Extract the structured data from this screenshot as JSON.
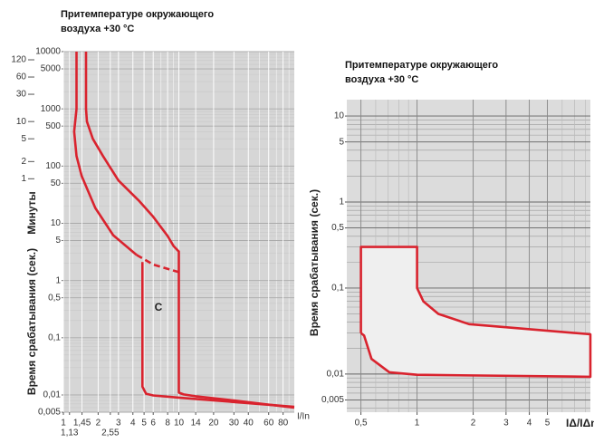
{
  "chart_data": [
    {
      "type": "line",
      "title": [
        "Притемпературе окружающего",
        "воздуха +30 °C"
      ],
      "y_label": "Время срабатывания (сек.)",
      "y2_label": "Минуты",
      "x_label": "I/In",
      "annotation": "C",
      "log_x": true,
      "log_y": true,
      "grid": true,
      "background": "#d6d6d6",
      "xlim": [
        1,
        100
      ],
      "ylim": [
        0.005,
        10000
      ],
      "y2lim": [
        8.33e-05,
        166.7
      ],
      "xticks": [
        1,
        {
          "value": 1.45,
          "label": "1,45"
        },
        2,
        3,
        4,
        5,
        6,
        8,
        10,
        14,
        20,
        30,
        40,
        60,
        80
      ],
      "xticks_lower": [
        {
          "value": 1.13,
          "label": "1,13"
        },
        {
          "value": 2.55,
          "label": "2,55"
        }
      ],
      "yticks": [
        10000,
        5000,
        1000,
        500,
        100,
        50,
        10,
        5,
        1,
        {
          "value": 0.5,
          "label": "0,5"
        },
        {
          "value": 0.1,
          "label": "0,1"
        },
        {
          "value": 0.01,
          "label": "0,01"
        },
        {
          "value": 0.005,
          "label": "0,005"
        }
      ],
      "y2ticks": [
        120,
        60,
        30,
        10,
        5,
        2,
        1
      ],
      "series": [
        {
          "color": "#d9232e",
          "x": [
            1.57,
            1.57,
            1.6,
            1.8,
            2.2,
            3,
            4.5,
            6,
            8,
            9,
            10,
            10,
            11,
            14,
            30,
            100
          ],
          "values": [
            10000,
            1000,
            600,
            300,
            150,
            56,
            25,
            13,
            6,
            4,
            3.2,
            0.011,
            0.0102,
            0.0095,
            0.008,
            0.006
          ]
        },
        {
          "color": "#d9232e",
          "x": [
            1.3,
            1.3,
            1.24,
            1.3,
            1.44,
            1.89,
            2.7,
            4.3
          ],
          "values": [
            10000,
            1000,
            400,
            150,
            67,
            18.6,
            6.2,
            2.8
          ]
        },
        {
          "color": "#d9232e",
          "dashed": true,
          "x": [
            4.3,
            6,
            8,
            10
          ],
          "values": [
            2.8,
            1.9,
            1.6,
            1.4
          ]
        },
        {
          "color": "#d9232e",
          "x": [
            4.84,
            4.84,
            5.2,
            6,
            10,
            100
          ],
          "values": [
            2.1,
            0.014,
            0.0105,
            0.0098,
            0.009,
            0.0062
          ]
        }
      ]
    },
    {
      "type": "line",
      "title": [
        "Притемпературе окружающего",
        "воздуха +30 °C"
      ],
      "y_label": "Время срабатывания (сек.)",
      "x_label": "IΔ/IΔn",
      "log_x": true,
      "log_y": true,
      "grid": true,
      "background": "#dcdcdc",
      "xlim": [
        0.42,
        8.5
      ],
      "ylim": [
        0.0036,
        15.5
      ],
      "xticks": [
        {
          "value": 0.5,
          "label": "0,5"
        },
        1,
        2,
        3,
        4,
        5
      ],
      "yticks": [
        10,
        5,
        1,
        {
          "value": 0.5,
          "label": "0,5"
        },
        {
          "value": 0.1,
          "label": "0,1"
        },
        {
          "value": 0.01,
          "label": "0,01"
        },
        {
          "value": 0.005,
          "label": "0,005"
        }
      ],
      "series": [
        {
          "color": "#d9232e",
          "fill": "#efefef",
          "x": [
            0.5,
            0.5,
            1,
            1,
            1.08,
            1.3,
            1.9,
            8.5,
            8.5,
            1,
            0.71,
            0.57,
            0.52,
            0.5
          ],
          "values": [
            0.03,
            0.3,
            0.3,
            0.1,
            0.07,
            0.05,
            0.038,
            0.029,
            0.0093,
            0.0098,
            0.0105,
            0.015,
            0.028,
            0.03
          ]
        }
      ]
    }
  ]
}
